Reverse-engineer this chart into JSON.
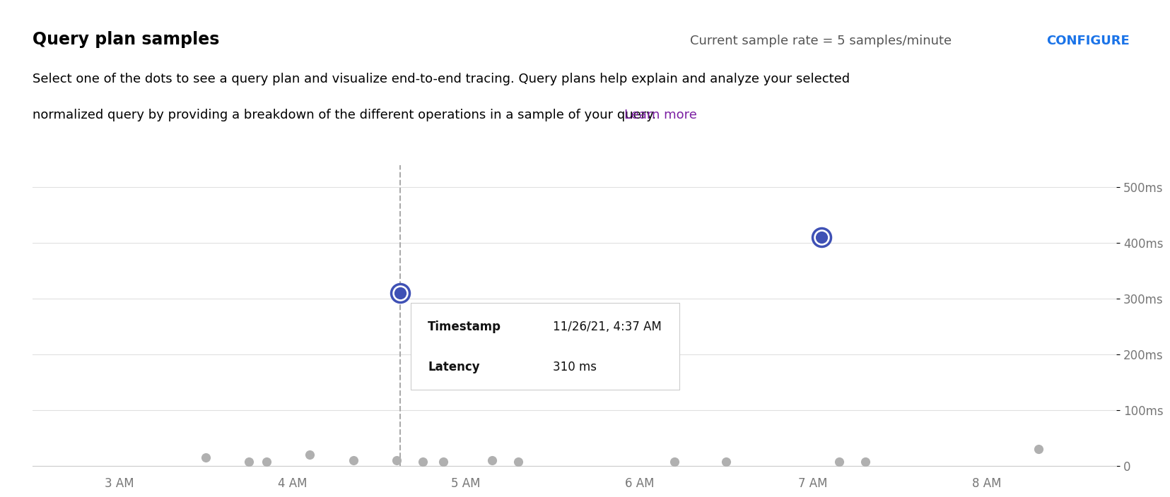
{
  "title": "Query plan samples",
  "subtitle_line1": "Select one of the dots to see a query plan and visualize end-to-end tracing. Query plans help explain and analyze your selected",
  "subtitle_line2": "normalized query by providing a breakdown of the different operations in a sample of your query.",
  "subtitle_link": "Learn more",
  "header_rate_text": "Current sample rate = 5 samples/minute",
  "header_configure": "CONFIGURE",
  "bg_color": "#ffffff",
  "plot_bg_color": "#ffffff",
  "grid_color": "#e0e0e0",
  "x_tick_labels": [
    "3 AM",
    "4 AM",
    "5 AM",
    "6 AM",
    "7 AM",
    "8 AM"
  ],
  "x_tick_positions": [
    3,
    4,
    5,
    6,
    7,
    8
  ],
  "y_tick_labels": [
    "0",
    "100ms",
    "200ms",
    "300ms",
    "400ms",
    "500ms"
  ],
  "y_tick_positions": [
    0,
    100,
    200,
    300,
    400,
    500
  ],
  "ylim": [
    0,
    540
  ],
  "xlim": [
    2.5,
    8.75
  ],
  "gray_dots_x": [
    3.5,
    3.75,
    3.85,
    4.1,
    4.35,
    4.6,
    4.75,
    4.87,
    5.15,
    5.3,
    6.2,
    6.5,
    7.15,
    7.3,
    8.3
  ],
  "gray_dots_y": [
    15,
    8,
    8,
    20,
    10,
    10,
    8,
    8,
    10,
    8,
    8,
    8,
    8,
    8,
    30
  ],
  "gray_dot_color": "#b0b0b0",
  "selected_dot_x": 4.62,
  "selected_dot_y": 310,
  "selected_dot_color": "#3f51b5",
  "second_dot_x": 7.05,
  "second_dot_y": 410,
  "second_dot_color": "#3f51b5",
  "dashed_line_x": 4.62,
  "tooltip_timestamp": "11/26/21, 4:37 AM",
  "tooltip_latency": "310 ms",
  "tooltip_box_color": "#ffffff",
  "tooltip_border_color": "#cccccc",
  "title_fontsize": 17,
  "subtitle_fontsize": 13,
  "header_fontsize": 13,
  "configure_color": "#1a73e8",
  "link_color": "#7b1fa2",
  "axis_label_color": "#777777",
  "axis_label_fontsize": 12
}
